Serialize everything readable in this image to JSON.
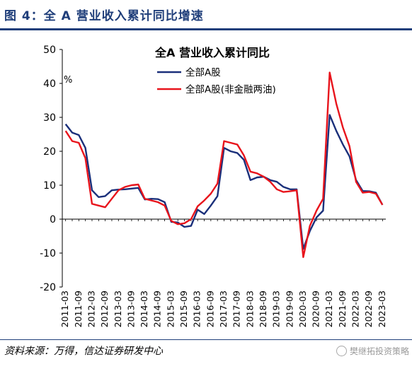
{
  "figure": {
    "title": "图 4：全 A 营业收入累计同比增速",
    "source": "资料来源：万得，信达证券研发中心",
    "watermark": "樊继拓投资策略"
  },
  "colors": {
    "title_blue": "#1f3e7a",
    "series_navy": "#1a2f7a",
    "series_red": "#e8141c"
  },
  "chart_data": {
    "type": "line",
    "title": "全A 营业收入累计同比",
    "ylabel": "%",
    "ylim": [
      -20,
      50
    ],
    "yticks": [
      -20,
      -10,
      0,
      10,
      20,
      30,
      40,
      50
    ],
    "grid": false,
    "legend_position": "top-left",
    "x": [
      "2011-03",
      "2011-06",
      "2011-09",
      "2011-12",
      "2012-03",
      "2012-06",
      "2012-09",
      "2012-12",
      "2013-03",
      "2013-06",
      "2013-09",
      "2013-12",
      "2014-03",
      "2014-06",
      "2014-09",
      "2014-12",
      "2015-03",
      "2015-06",
      "2015-09",
      "2015-12",
      "2016-03",
      "2016-06",
      "2016-09",
      "2016-12",
      "2017-03",
      "2017-06",
      "2017-09",
      "2017-12",
      "2018-03",
      "2018-06",
      "2018-09",
      "2018-12",
      "2019-03",
      "2019-06",
      "2019-09",
      "2019-12",
      "2020-03",
      "2020-06",
      "2020-09",
      "2020-12",
      "2021-03",
      "2021-06",
      "2021-09",
      "2021-12",
      "2022-03",
      "2022-06",
      "2022-09",
      "2022-12",
      "2023-03"
    ],
    "xtick_labels": [
      "2011-03",
      "2011-09",
      "2012-03",
      "2012-09",
      "2013-03",
      "2013-09",
      "2014-03",
      "2014-09",
      "2015-03",
      "2015-09",
      "2016-03",
      "2016-09",
      "2017-03",
      "2017-09",
      "2018-03",
      "2018-09",
      "2019-03",
      "2019-09",
      "2020-03",
      "2020-09",
      "2021-03",
      "2021-09",
      "2022-03",
      "2022-09",
      "2023-03"
    ],
    "series": [
      {
        "name": "全部A股",
        "color": "#1a2f7a",
        "values": [
          28.0,
          25.5,
          24.8,
          21.0,
          8.5,
          6.5,
          6.8,
          8.5,
          8.7,
          8.8,
          9.0,
          9.2,
          5.8,
          6.0,
          5.9,
          5.0,
          -0.8,
          -1.0,
          -2.3,
          -2.0,
          2.8,
          1.5,
          4.0,
          6.8,
          21.0,
          20.0,
          19.5,
          17.5,
          11.5,
          12.3,
          12.5,
          11.5,
          11.0,
          9.5,
          8.8,
          8.8,
          -8.8,
          -3.5,
          0.5,
          2.5,
          30.7,
          26.0,
          22.0,
          18.5,
          11.5,
          8.3,
          8.2,
          7.8,
          4.2
        ]
      },
      {
        "name": "全部A股(非金融两油)",
        "color": "#e8141c",
        "values": [
          26.0,
          23.0,
          22.5,
          18.0,
          4.5,
          4.0,
          3.5,
          6.0,
          8.5,
          9.5,
          10.0,
          10.2,
          6.0,
          5.5,
          5.0,
          4.0,
          -0.5,
          -1.5,
          -1.2,
          0.0,
          3.8,
          5.5,
          7.5,
          10.5,
          23.0,
          22.5,
          22.0,
          18.8,
          14.0,
          13.5,
          12.5,
          11.0,
          8.8,
          8.0,
          8.2,
          8.5,
          -11.2,
          -2.0,
          2.5,
          6.0,
          43.2,
          34.0,
          27.0,
          21.5,
          11.0,
          7.8,
          8.0,
          7.5,
          4.2
        ]
      }
    ]
  }
}
